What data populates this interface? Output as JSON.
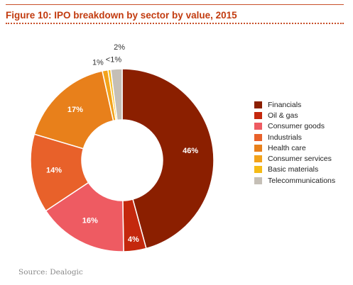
{
  "title": "Figure 10: IPO breakdown by sector by value, 2015",
  "source": "Source: Dealogic",
  "chart_data": {
    "type": "pie",
    "style": "donut",
    "title": "Figure 10: IPO breakdown by sector by value, 2015",
    "legend_position": "right",
    "categories": [
      "Financials",
      "Oil & gas",
      "Consumer goods",
      "Industrials",
      "Health care",
      "Consumer services",
      "Basic materials",
      "Telecommunications"
    ],
    "values": [
      46,
      4,
      16,
      14,
      17,
      1,
      0.5,
      2
    ],
    "labels": [
      "46%",
      "4%",
      "16%",
      "14%",
      "17%",
      "1%",
      "<1%",
      "2%"
    ],
    "colors": [
      "#8b1f00",
      "#c4280d",
      "#ee5b62",
      "#e8612a",
      "#e8801b",
      "#f2a21a",
      "#f5bb16",
      "#c5bfb6"
    ]
  }
}
